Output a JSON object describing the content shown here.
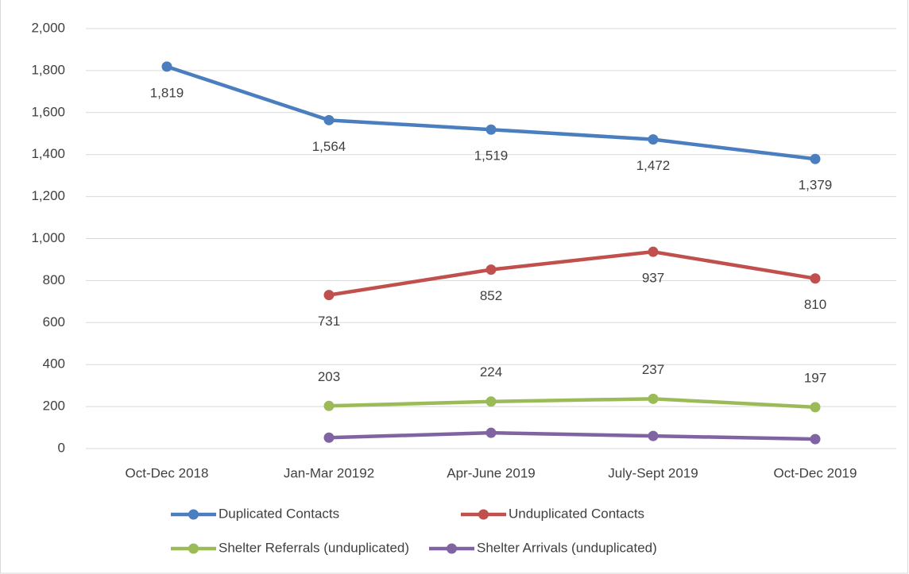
{
  "chart_data": {
    "type": "line",
    "categories": [
      "Oct-Dec 2018",
      "Jan-Mar 20192",
      "Apr-June 2019",
      "July-Sept 2019",
      "Oct-Dec 2019"
    ],
    "series": [
      {
        "name": "Duplicated Contacts",
        "color": "#4a7ebf",
        "label_position": "below",
        "values": [
          1819,
          1564,
          1519,
          1472,
          1379
        ],
        "value_labels": [
          "1,819",
          "1,564",
          "1,519",
          "1,472",
          "1,379"
        ]
      },
      {
        "name": "Unduplicated Contacts",
        "color": "#c0504d",
        "label_position": "below",
        "values": [
          null,
          731,
          852,
          937,
          810
        ],
        "value_labels": [
          null,
          "731",
          "852",
          "937",
          "810"
        ]
      },
      {
        "name": "Shelter Referrals (unduplicated)",
        "color": "#9bbb59",
        "label_position": "above",
        "values": [
          null,
          203,
          224,
          237,
          197
        ],
        "value_labels": [
          null,
          "203",
          "224",
          "237",
          "197"
        ]
      },
      {
        "name": "Shelter Arrivals (unduplicated)",
        "color": "#8064a2",
        "values": [
          null,
          52,
          75,
          60,
          45
        ]
      }
    ],
    "ylim": [
      0,
      2000
    ],
    "yticks": [
      0,
      200,
      400,
      600,
      800,
      {
        "value": 1000,
        "label": "1,000"
      },
      {
        "value": 1200,
        "label": "1,200"
      },
      {
        "value": 1400,
        "label": "1,400"
      },
      {
        "value": 1600,
        "label": "1,600"
      },
      {
        "value": 1800,
        "label": "1,800"
      },
      {
        "value": 2000,
        "label": "2,000"
      }
    ],
    "grid": true,
    "legend": "bottom"
  }
}
